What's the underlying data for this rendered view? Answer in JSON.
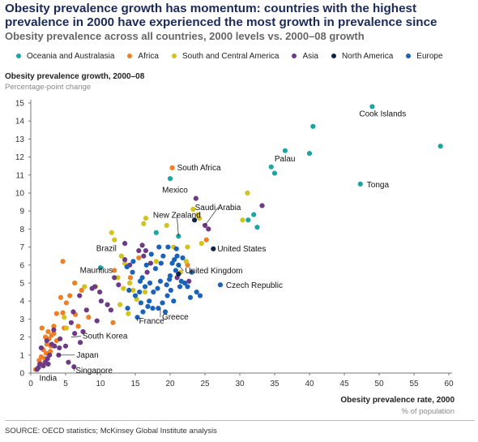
{
  "header": {
    "title": "Obesity prevalence growth has momentum: countries with the highest prevalence in 2000 have experienced the most growth in prevalence since",
    "subtitle": "Obesity prevalence across all countries, 2000 levels vs. 2000–08 growth"
  },
  "footer": {
    "source": "SOURCE: OECD statistics; McKinsey Global Institute analysis"
  },
  "chart_data": {
    "type": "scatter",
    "title": "Obesity prevalence across all countries, 2000 levels vs. 2000–08 growth",
    "ylabel": "Obesity prevalence growth, 2000–08",
    "ylabel_unit": "Percentage-point change",
    "xlabel": "Obesity prevalence rate, 2000",
    "xlabel_unit": "% of population",
    "xlim": [
      0,
      60
    ],
    "ylim": [
      0,
      15
    ],
    "xticks": [
      0,
      5,
      10,
      15,
      20,
      25,
      30,
      35,
      40,
      45,
      50,
      55,
      60
    ],
    "yticks": [
      0,
      1,
      2,
      3,
      4,
      5,
      6,
      7,
      8,
      9,
      10,
      11,
      12,
      13,
      14,
      15
    ],
    "grid": false,
    "legend_position": "top",
    "colors": {
      "Oceania and Australasia": "#1aa7a3",
      "Africa": "#f07f22",
      "South and Central America": "#d4c21d",
      "Asia": "#6d3a86",
      "North America": "#0f2447",
      "Europe": "#1b63b8"
    },
    "series": [
      {
        "name": "Oceania and Australasia",
        "points": [
          [
            49,
            14.8
          ],
          [
            40.5,
            13.7
          ],
          [
            58.8,
            12.6
          ],
          [
            36.5,
            12.35
          ],
          [
            40,
            12.2
          ],
          [
            34.5,
            11.45
          ],
          [
            35,
            11.1
          ],
          [
            20,
            10.8
          ],
          [
            47.3,
            10.5
          ],
          [
            32,
            8.8
          ],
          [
            31.2,
            8.5
          ],
          [
            32.5,
            8.1
          ],
          [
            18,
            7.8
          ],
          [
            21.2,
            7.6
          ],
          [
            10,
            5.85
          ]
        ]
      },
      {
        "name": "Africa",
        "points": [
          [
            20.3,
            11.4
          ],
          [
            4.6,
            6.2
          ],
          [
            15.5,
            6.4
          ],
          [
            22.5,
            6.0
          ],
          [
            25.2,
            7.4
          ],
          [
            6.3,
            5.0
          ],
          [
            5.6,
            4.3
          ],
          [
            4.3,
            4.2
          ],
          [
            3.7,
            3.3
          ],
          [
            4.6,
            3.35
          ],
          [
            6.4,
            3.25
          ],
          [
            3.3,
            2.6
          ],
          [
            4.8,
            2.5
          ],
          [
            3.3,
            2.2
          ],
          [
            2.6,
            1.9
          ],
          [
            3.7,
            1.8
          ],
          [
            2.3,
            1.6
          ],
          [
            2.9,
            1.5
          ],
          [
            1.8,
            1.3
          ],
          [
            2.2,
            1.1
          ],
          [
            1.5,
            0.9
          ],
          [
            2.1,
            2.0
          ],
          [
            2.8,
            1.2
          ],
          [
            1.2,
            0.7
          ],
          [
            1.7,
            0.5
          ],
          [
            1.1,
            0.3
          ],
          [
            1.6,
            2.5
          ],
          [
            0.7,
            0.2
          ],
          [
            2.5,
            2.3
          ],
          [
            5.1,
            3.9
          ],
          [
            3.0,
            2.1
          ],
          [
            2.0,
            0.8
          ],
          [
            6.8,
            2.6
          ],
          [
            12.0,
            5.7
          ],
          [
            14.3,
            5.3
          ],
          [
            7.3,
            4.6
          ],
          [
            11.8,
            2.8
          ],
          [
            8.3,
            3.1
          ]
        ]
      },
      {
        "name": "South and Central America",
        "points": [
          [
            31.1,
            10.0
          ],
          [
            23.3,
            9.1
          ],
          [
            16.5,
            8.6
          ],
          [
            19.5,
            8.2
          ],
          [
            16.2,
            8.3
          ],
          [
            24.0,
            8.8
          ],
          [
            30.4,
            8.5
          ],
          [
            24.2,
            8.6
          ],
          [
            11.6,
            7.8
          ],
          [
            20.5,
            7.0
          ],
          [
            22.5,
            7.0
          ],
          [
            12.0,
            7.4
          ],
          [
            13.0,
            6.5
          ],
          [
            18.0,
            6.2
          ],
          [
            13.5,
            6.1
          ],
          [
            12.5,
            5.3
          ],
          [
            14.2,
            5.0
          ],
          [
            14.7,
            4.6
          ],
          [
            13.3,
            4.7
          ],
          [
            16.4,
            4.5
          ],
          [
            12.8,
            3.8
          ],
          [
            9.3,
            4.8
          ],
          [
            7.7,
            4.8
          ],
          [
            24.5,
            7.2
          ],
          [
            22.3,
            6.2
          ],
          [
            4.8,
            3.1
          ],
          [
            5.1,
            2.5
          ],
          [
            15.2,
            4.1
          ],
          [
            14.0,
            3.3
          ],
          [
            21.5,
            5.6
          ]
        ]
      },
      {
        "name": "Asia",
        "points": [
          [
            23.7,
            9.7
          ],
          [
            33.2,
            9.3
          ],
          [
            25.0,
            8.2
          ],
          [
            25.5,
            8.0
          ],
          [
            12.0,
            5.3
          ],
          [
            13.5,
            6.3
          ],
          [
            9.2,
            4.8
          ],
          [
            9.9,
            4.5
          ],
          [
            7.0,
            4.3
          ],
          [
            11.0,
            3.8
          ],
          [
            11.5,
            3.5
          ],
          [
            8.0,
            3.5
          ],
          [
            6.1,
            3.4
          ],
          [
            5.8,
            2.8
          ],
          [
            6.3,
            2.2
          ],
          [
            7.1,
            1.7
          ],
          [
            4.2,
            1.9
          ],
          [
            3.4,
            1.5
          ],
          [
            2.3,
            1.8
          ],
          [
            1.5,
            1.4
          ],
          [
            2.7,
            1.0
          ],
          [
            2.4,
            0.8
          ],
          [
            4.0,
            1.0
          ],
          [
            5.4,
            0.6
          ],
          [
            1.3,
            0.5
          ],
          [
            1.1,
            0.3
          ],
          [
            4.1,
            1.4
          ],
          [
            16.0,
            7.1
          ],
          [
            15.5,
            6.8
          ],
          [
            16.2,
            6.5
          ],
          [
            16.5,
            6.8
          ],
          [
            17.2,
            6.1
          ],
          [
            16.7,
            5.6
          ],
          [
            14.2,
            6.0
          ],
          [
            13.5,
            7.2
          ],
          [
            8.8,
            4.7
          ],
          [
            10.1,
            4.0
          ],
          [
            9.5,
            2.9
          ],
          [
            12.6,
            4.9
          ],
          [
            21.0,
            5.3
          ],
          [
            22.7,
            5.1
          ],
          [
            6.2,
            0.35
          ],
          [
            2.5,
            0.5
          ],
          [
            3.0,
            1.6
          ],
          [
            2.1,
            0.6
          ],
          [
            5.0,
            1.5
          ],
          [
            0.9,
            0.2
          ],
          [
            7.5,
            2.3
          ],
          [
            1.8,
            0.4
          ],
          [
            3.3,
            2.4
          ]
        ]
      },
      {
        "name": "North America",
        "points": [
          [
            23.5,
            8.5
          ],
          [
            21.2,
            5.5
          ],
          [
            26.2,
            6.9
          ]
        ]
      },
      {
        "name": "Europe",
        "points": [
          [
            27.2,
            4.9
          ],
          [
            21.0,
            6.5
          ],
          [
            21.2,
            6.0
          ],
          [
            20.8,
            5.7
          ],
          [
            20.3,
            6.1
          ],
          [
            20.0,
            5.4
          ],
          [
            19.5,
            4.9
          ],
          [
            18.6,
            5.1
          ],
          [
            18.2,
            4.7
          ],
          [
            17.6,
            4.5
          ],
          [
            17.0,
            4.0
          ],
          [
            16.8,
            3.7
          ],
          [
            16.1,
            3.4
          ],
          [
            15.3,
            3.1
          ],
          [
            17.5,
            3.6
          ],
          [
            18.3,
            3.6
          ],
          [
            18.9,
            3.9
          ],
          [
            19.6,
            4.3
          ],
          [
            20.1,
            4.6
          ],
          [
            21.4,
            4.8
          ],
          [
            22.1,
            5.0
          ],
          [
            22.9,
            4.2
          ],
          [
            20.5,
            4.0
          ],
          [
            19.3,
            3.4
          ],
          [
            16.4,
            4.8
          ],
          [
            15.7,
            5.1
          ],
          [
            14.6,
            5.6
          ],
          [
            15.0,
            4.3
          ],
          [
            14.1,
            4.6
          ],
          [
            13.8,
            5.9
          ],
          [
            14.7,
            6.2
          ],
          [
            16.0,
            5.3
          ],
          [
            17.1,
            5.0
          ],
          [
            16.6,
            6.0
          ],
          [
            17.9,
            5.8
          ],
          [
            18.7,
            6.1
          ],
          [
            19.0,
            6.5
          ],
          [
            19.7,
            7.0
          ],
          [
            18.4,
            7.0
          ],
          [
            20.9,
            6.9
          ],
          [
            21.6,
            5.1
          ],
          [
            22.5,
            4.8
          ],
          [
            23.8,
            4.5
          ],
          [
            15.6,
            4.5
          ],
          [
            13.9,
            3.6
          ],
          [
            17.3,
            6.6
          ],
          [
            19.9,
            5.2
          ],
          [
            20.6,
            6.3
          ],
          [
            21.8,
            6.4
          ],
          [
            15.8,
            3.9
          ],
          [
            24.3,
            4.3
          ],
          [
            23.1,
            5.6
          ]
        ]
      }
    ],
    "annotations": [
      {
        "text": "Cook Islands",
        "point": [
          49,
          14.8
        ]
      },
      {
        "text": "Palau",
        "point": [
          36.5,
          12.35
        ]
      },
      {
        "text": "Tonga",
        "point": [
          47.3,
          10.5
        ]
      },
      {
        "text": "South Africa",
        "point": [
          20.3,
          11.4
        ]
      },
      {
        "text": "Mexico",
        "point": [
          23.7,
          9.7
        ]
      },
      {
        "text": "New Zealand",
        "point": [
          21.2,
          7.6
        ]
      },
      {
        "text": "Saudi Arabia",
        "point": [
          25.0,
          8.2
        ]
      },
      {
        "text": "United States",
        "point": [
          26.2,
          6.9
        ]
      },
      {
        "text": "Brazil",
        "point": [
          13.0,
          6.5
        ]
      },
      {
        "text": "Mauritius",
        "point": [
          12.0,
          5.7
        ]
      },
      {
        "text": "United Kingdom",
        "point": [
          21.2,
          6.0
        ]
      },
      {
        "text": "Czech Republic",
        "point": [
          27.2,
          4.9
        ]
      },
      {
        "text": "Greece",
        "point": [
          18.6,
          3.6
        ]
      },
      {
        "text": "France",
        "point": [
          15.3,
          3.1
        ]
      },
      {
        "text": "South Korea",
        "point": [
          5.8,
          2.0
        ]
      },
      {
        "text": "Japan",
        "point": [
          4.0,
          1.0
        ]
      },
      {
        "text": "Singapore",
        "point": [
          6.2,
          0.35
        ]
      },
      {
        "text": "India",
        "point": [
          1.1,
          0.3
        ]
      }
    ]
  }
}
